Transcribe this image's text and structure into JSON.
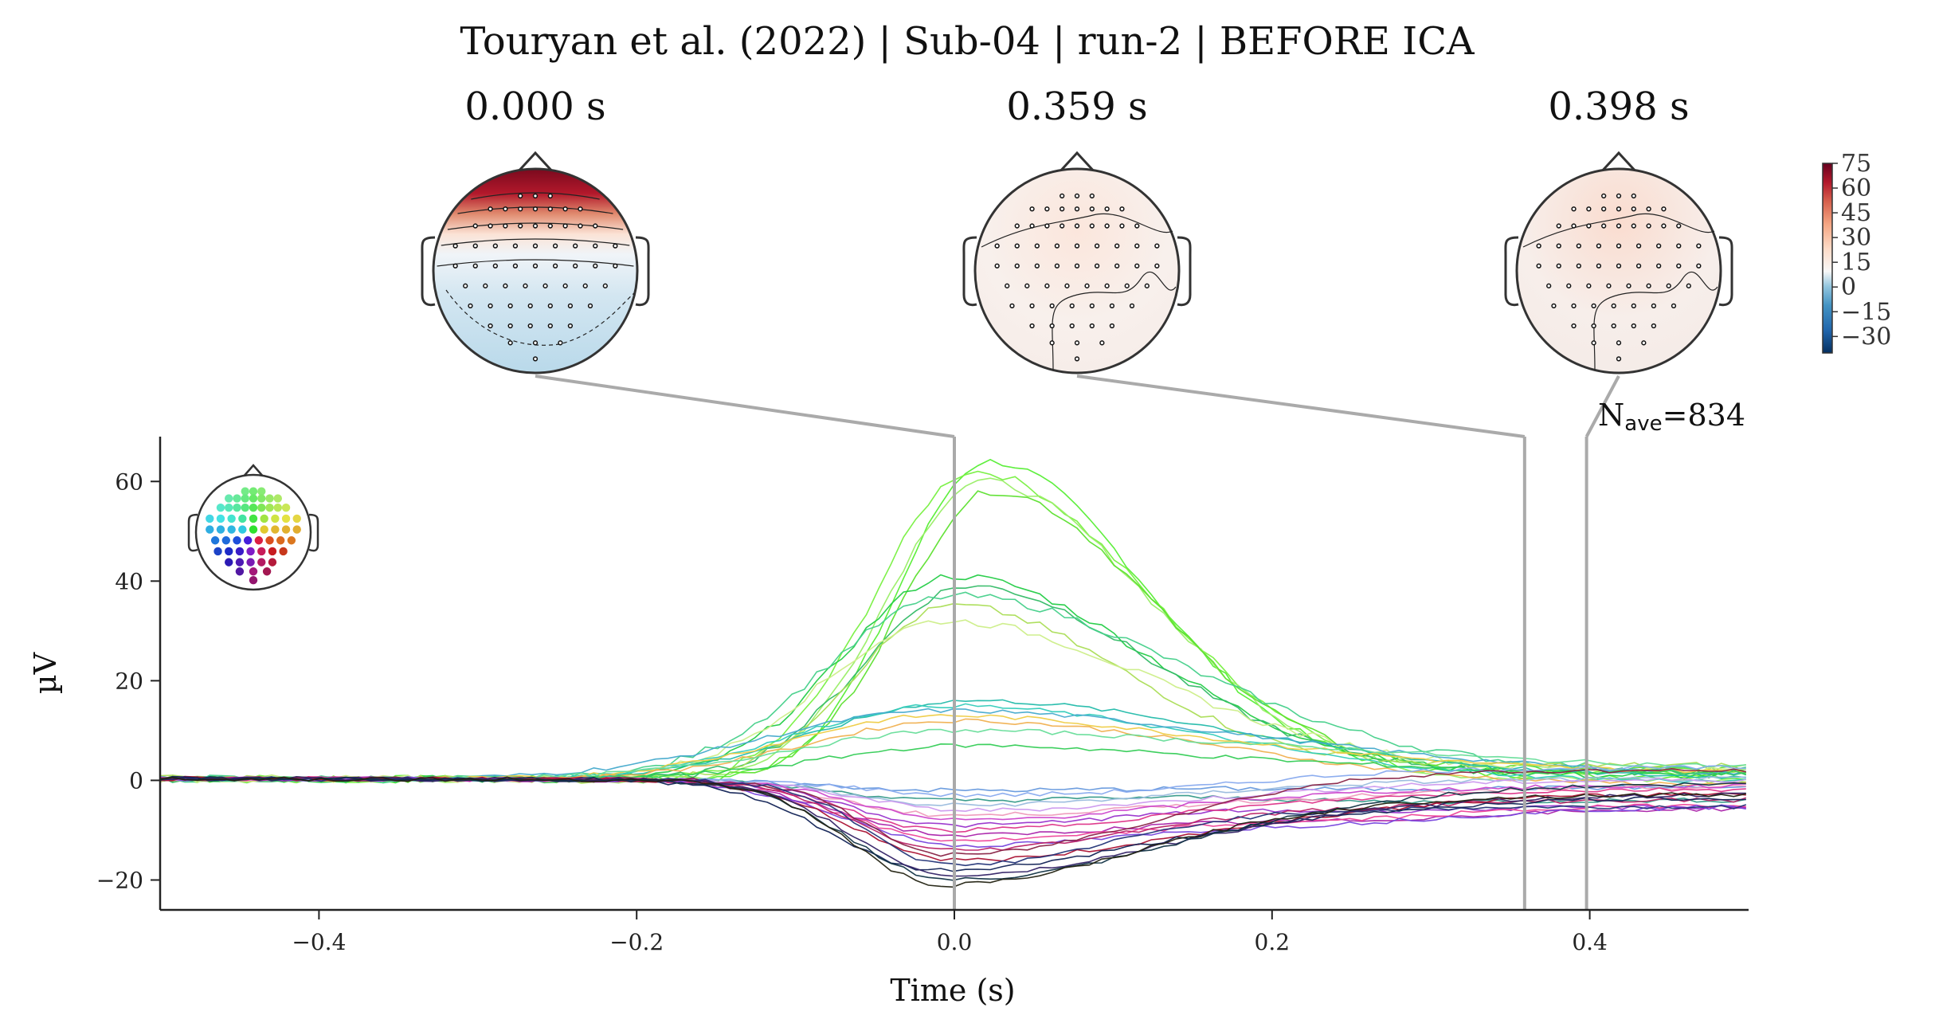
{
  "chart_data": {
    "type": "line",
    "title": "Touryan et al. (2022) | Sub-04 | run-2 | BEFORE ICA",
    "xlabel": "Time (s)",
    "ylabel": "µV",
    "xlim": [
      -0.5,
      0.5
    ],
    "ylim": [
      -26,
      69
    ],
    "xticks": [
      -0.4,
      -0.2,
      0.0,
      0.2,
      0.4
    ],
    "xtick_labels": [
      "−0.4",
      "−0.2",
      "0.0",
      "0.2",
      "0.4"
    ],
    "yticks": [
      -20,
      0,
      20,
      40,
      60
    ],
    "ytick_labels": [
      "−20",
      "0",
      "20",
      "40",
      "60"
    ],
    "grid": false,
    "nave_label": "N",
    "nave_sub": "ave",
    "nave_value": "=834",
    "topomap_times": [
      0.0,
      0.359,
      0.398
    ],
    "topomap_labels": [
      "0.000 s",
      "0.359 s",
      "0.398 s"
    ],
    "colorbar": {
      "colormap": "RdBu_r",
      "range": [
        -40,
        75
      ],
      "ticks": [
        75,
        60,
        45,
        30,
        15,
        0,
        -15,
        -30
      ],
      "tick_labels": [
        "75",
        "60",
        "45",
        "30",
        "15",
        "0",
        "−15",
        "−30"
      ]
    },
    "series_groups": [
      {
        "peak_time": 0.02,
        "amplitudes": [
          64,
          62,
          60,
          58
        ],
        "colors": [
          "#55ee33",
          "#77f040",
          "#99ee66",
          "#5ce02e"
        ],
        "width": 0.07
      },
      {
        "peak_time": 0.0,
        "amplitudes": [
          41,
          39,
          37,
          35,
          32
        ],
        "colors": [
          "#22cc44",
          "#33bb66",
          "#44d08a",
          "#aadd55",
          "#ccee88"
        ],
        "width": 0.08
      },
      {
        "peak_time": 0.0,
        "amplitudes": [
          16,
          15,
          14,
          13,
          12,
          10,
          7
        ],
        "colors": [
          "#22bbaa",
          "#33ccbb",
          "#44aacc",
          "#eecc44",
          "#f0b050",
          "#66dd99",
          "#33cc55"
        ],
        "width": 0.11
      },
      {
        "peak_time": 0.0,
        "amplitudes": [
          -2,
          -3,
          -4,
          -5,
          -6,
          -7
        ],
        "colors": [
          "#6699dd",
          "#88aaee",
          "#339988",
          "#99bbdd",
          "#cc99ee",
          "#ee99bb"
        ],
        "width": 0.09
      },
      {
        "peak_time": 0.0,
        "amplitudes": [
          -8,
          -9,
          -10,
          -11,
          -12,
          -13,
          -14
        ],
        "colors": [
          "#cc44cc",
          "#9933cc",
          "#dd3388",
          "#aa22aa",
          "#ee4499",
          "#7744dd",
          "#bb2266"
        ],
        "width": 0.09
      },
      {
        "peak_time": -0.005,
        "amplitudes": [
          -15,
          -16,
          -17,
          -18,
          -19,
          -20,
          -21
        ],
        "colors": [
          "#882244",
          "#aa1133",
          "#223377",
          "#112255",
          "#332266",
          "#113344",
          "#222211"
        ],
        "width": 0.08
      }
    ]
  }
}
